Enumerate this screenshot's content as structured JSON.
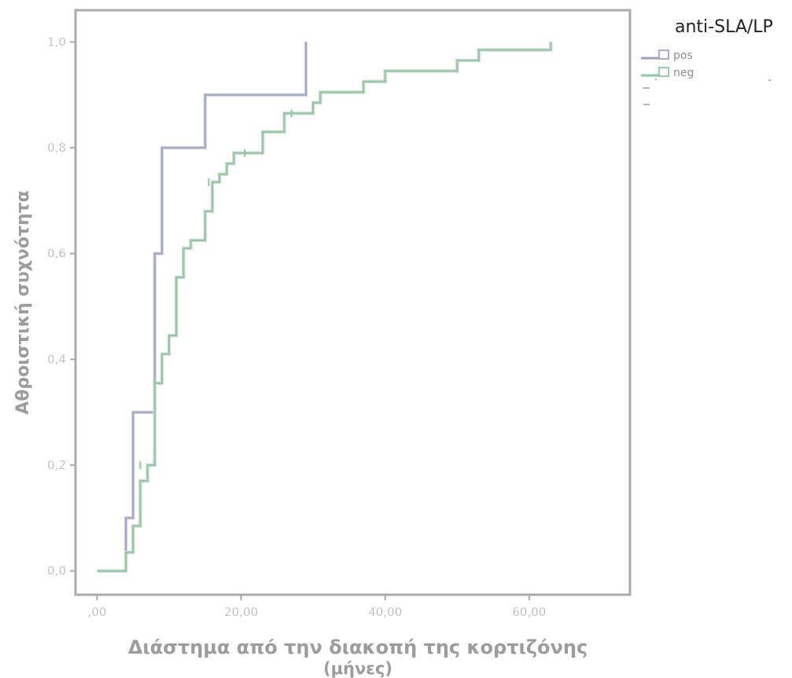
{
  "chart_data": {
    "type": "line",
    "step": true,
    "xlabel": "Διάστημα από την διακοπή της κορτιζόνης",
    "xlabel_unit": "(μήνες)",
    "ylabel": "Αθροιστική συχνότητα",
    "xlim": [
      -3,
      74
    ],
    "ylim": [
      -0.045,
      1.06
    ],
    "xticks": [
      0,
      20,
      40,
      60
    ],
    "xtick_labels": [
      ",00",
      "20,00",
      "40,00",
      "60,00"
    ],
    "yticks": [
      0,
      0.2,
      0.4,
      0.6,
      0.8,
      1.0
    ],
    "ytick_labels": [
      "0,0",
      "0,2",
      "0,4",
      "0,6",
      "0,8",
      "1,0"
    ],
    "grid": false,
    "legend": {
      "title": "anti-SLA/LP",
      "position": "top-right outside"
    },
    "series": [
      {
        "name": "pos",
        "color": "#9fa3c7",
        "x": [
          0,
          4,
          5,
          8,
          9,
          15,
          29
        ],
        "y": [
          0,
          0.1,
          0.3,
          0.6,
          0.8,
          0.9,
          1.0
        ],
        "censored": []
      },
      {
        "name": "neg",
        "color": "#8cc9a0",
        "x": [
          0,
          4,
          5,
          6,
          7,
          8,
          9,
          10,
          11,
          12,
          13,
          15,
          16,
          17,
          18,
          19,
          21,
          23,
          24,
          26,
          29,
          30,
          31,
          37,
          40,
          50,
          53,
          63
        ],
        "y": [
          0,
          0.035,
          0.085,
          0.17,
          0.2,
          0.355,
          0.41,
          0.445,
          0.555,
          0.61,
          0.625,
          0.68,
          0.735,
          0.75,
          0.77,
          0.79,
          0.79,
          0.83,
          0.83,
          0.865,
          0.865,
          0.885,
          0.905,
          0.925,
          0.945,
          0.965,
          0.985,
          1.0
        ],
        "censored": [
          [
            6,
            0.2
          ],
          [
            8,
            0.355
          ],
          [
            15.5,
            0.735
          ],
          [
            20.5,
            0.79
          ],
          [
            27,
            0.865
          ]
        ]
      }
    ]
  }
}
